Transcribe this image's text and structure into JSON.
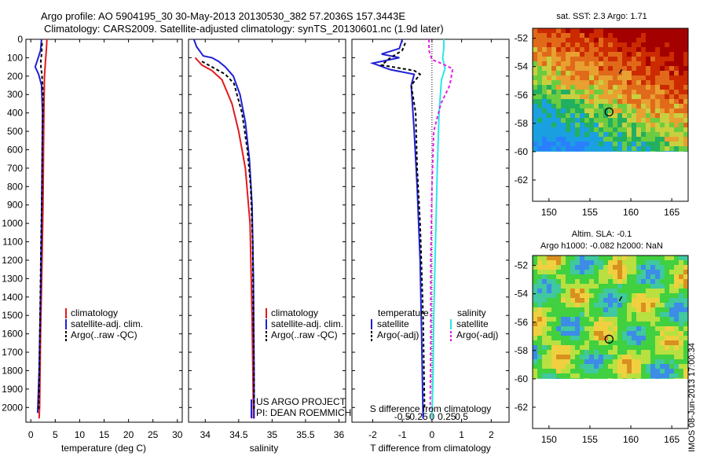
{
  "titles": {
    "line1": "Argo profile: AO 5904195_30 30-May-2013 20130530_382 57.2036S 157.3443E",
    "line2": "Climatology: CARS2009. Satellite-adjusted climatology: synTS_20130601.nc (1.9d later)"
  },
  "stamp": "IMOS 08-Jun-2013 17:00:34",
  "colors": {
    "climatology": "#e31a1c",
    "satellite": "#1f1fd6",
    "argo": "#000000",
    "salinity_sat": "#2ee6e6",
    "argo_adj_s": "#e61ee6"
  },
  "chart_data": [
    {
      "type": "line",
      "panel": "temperature",
      "xlabel": "temperature (deg C)",
      "ylabel": "",
      "xlim": [
        -1,
        31
      ],
      "ylim": [
        2080,
        0
      ],
      "xticks": [
        "0",
        "5",
        "10",
        "15",
        "20",
        "25",
        "30"
      ],
      "yticks": [
        "0",
        "100",
        "200",
        "300",
        "400",
        "500",
        "600",
        "700",
        "800",
        "900",
        "1000",
        "1100",
        "1200",
        "1300",
        "1400",
        "1500",
        "1600",
        "1700",
        "1800",
        "1900",
        "2000"
      ],
      "legend": [
        "climatology",
        "satellite-adj. clim.",
        "Argo(..raw -QC)"
      ],
      "series": [
        {
          "name": "climatology",
          "color": "#e31a1c",
          "points": [
            [
              3.3,
              0
            ],
            [
              3.2,
              50
            ],
            [
              3.0,
              120
            ],
            [
              2.8,
              200
            ],
            [
              2.7,
              350
            ],
            [
              2.6,
              600
            ],
            [
              2.5,
              900
            ],
            [
              2.3,
              1200
            ],
            [
              2.0,
              1600
            ],
            [
              1.8,
              2000
            ],
            [
              1.7,
              2060
            ]
          ]
        },
        {
          "name": "satellite-adj. clim.",
          "color": "#1f1fd6",
          "points": [
            [
              2.2,
              0
            ],
            [
              2.0,
              60
            ],
            [
              1.4,
              110
            ],
            [
              0.9,
              150
            ],
            [
              1.6,
              190
            ],
            [
              2.2,
              250
            ],
            [
              2.4,
              400
            ],
            [
              2.3,
              700
            ],
            [
              2.2,
              1000
            ],
            [
              2.0,
              1400
            ],
            [
              1.7,
              1800
            ],
            [
              1.4,
              2030
            ]
          ]
        },
        {
          "name": "Argo(..raw -QC)",
          "color": "#000000",
          "dashed": true,
          "points": [
            [
              2.3,
              20
            ],
            [
              2.2,
              80
            ],
            [
              2.0,
              130
            ],
            [
              2.3,
              200
            ],
            [
              2.5,
              300
            ],
            [
              2.4,
              500
            ],
            [
              2.3,
              800
            ],
            [
              2.1,
              1100
            ],
            [
              1.9,
              1500
            ],
            [
              1.7,
              1900
            ],
            [
              1.6,
              2010
            ]
          ]
        }
      ]
    },
    {
      "type": "line",
      "panel": "salinity",
      "xlabel": "salinity",
      "ylabel": "",
      "xlim": [
        33.75,
        36.1
      ],
      "ylim": [
        2080,
        0
      ],
      "xticks": [
        "34",
        "34.5",
        "35",
        "35.5",
        "36"
      ],
      "legend": [
        "climatology",
        "satellite-adj. clim.",
        "Argo(..raw -QC)"
      ],
      "annotation": [
        "US ARGO PROJECT",
        "PI: DEAN ROEMMICH"
      ],
      "series": [
        {
          "name": "climatology",
          "color": "#e31a1c",
          "points": [
            [
              33.85,
              100
            ],
            [
              33.95,
              140
            ],
            [
              34.1,
              170
            ],
            [
              34.25,
              220
            ],
            [
              34.4,
              350
            ],
            [
              34.5,
              500
            ],
            [
              34.6,
              700
            ],
            [
              34.67,
              1000
            ],
            [
              34.7,
              1500
            ],
            [
              34.72,
              2000
            ],
            [
              34.72,
              2060
            ]
          ]
        },
        {
          "name": "satellite-adj. clim.",
          "color": "#1f1fd6",
          "points": [
            [
              33.83,
              0
            ],
            [
              33.87,
              40
            ],
            [
              33.97,
              90
            ],
            [
              34.1,
              100
            ],
            [
              34.2,
              120
            ],
            [
              34.3,
              150
            ],
            [
              34.42,
              200
            ],
            [
              34.52,
              300
            ],
            [
              34.6,
              450
            ],
            [
              34.66,
              650
            ],
            [
              34.7,
              900
            ],
            [
              34.72,
              1300
            ],
            [
              34.73,
              1800
            ],
            [
              34.73,
              2060
            ]
          ]
        },
        {
          "name": "Argo(..raw -QC)",
          "color": "#000000",
          "dashed": true,
          "points": [
            [
              33.95,
              120
            ],
            [
              34.1,
              150
            ],
            [
              34.3,
              190
            ],
            [
              34.43,
              240
            ],
            [
              34.55,
              400
            ],
            [
              34.63,
              600
            ],
            [
              34.68,
              800
            ],
            [
              34.71,
              1100
            ],
            [
              34.72,
              1500
            ],
            [
              34.73,
              1900
            ],
            [
              34.73,
              2010
            ]
          ]
        }
      ]
    },
    {
      "type": "line",
      "panel": "difference",
      "xlabel": "T difference from climatology",
      "xlabel_top": "S difference from climatology",
      "xlim": [
        -2.7,
        2.6
      ],
      "xticks": [
        "-2",
        "-1",
        "0",
        "1",
        "2"
      ],
      "xticks_top": [
        "-0.5",
        "-0.25",
        "0",
        "0.25",
        "0.5"
      ],
      "ylim": [
        2080,
        0
      ],
      "legend_temperature": {
        "title": "temperature",
        "items": [
          "satellite",
          "Argo(-adj)"
        ]
      },
      "legend_salinity": {
        "title": "salinity",
        "items": [
          "satellite",
          "Argo(-adj)"
        ]
      },
      "series": [
        {
          "name": "T satellite",
          "color": "#1f1fd6",
          "points": [
            [
              -1.0,
              0
            ],
            [
              -1.1,
              50
            ],
            [
              -1.7,
              80
            ],
            [
              -1.1,
              100
            ],
            [
              -2.0,
              130
            ],
            [
              -1.4,
              165
            ],
            [
              -0.6,
              190
            ],
            [
              -0.7,
              250
            ],
            [
              -0.6,
              500
            ],
            [
              -0.5,
              800
            ],
            [
              -0.4,
              1200
            ],
            [
              -0.35,
              1600
            ],
            [
              -0.3,
              2060
            ]
          ]
        },
        {
          "name": "T Argo(-adj)",
          "color": "#000000",
          "dashed": true,
          "points": [
            [
              -0.9,
              20
            ],
            [
              -1.0,
              60
            ],
            [
              -1.4,
              100
            ],
            [
              -1.7,
              140
            ],
            [
              -0.6,
              170
            ],
            [
              -0.4,
              190
            ],
            [
              -0.7,
              250
            ],
            [
              -0.55,
              400
            ],
            [
              -0.5,
              700
            ],
            [
              -0.4,
              1000
            ],
            [
              -0.3,
              1500
            ],
            [
              -0.25,
              2010
            ]
          ]
        },
        {
          "name": "S satellite",
          "color": "#2ee6e6",
          "points": [
            [
              0.2,
              0
            ],
            [
              0.2,
              50
            ],
            [
              0.18,
              100
            ],
            [
              0.22,
              160
            ],
            [
              0.16,
              220
            ],
            [
              0.12,
              400
            ],
            [
              0.09,
              700
            ],
            [
              0.06,
              1100
            ],
            [
              0.03,
              1500
            ],
            [
              0.02,
              1800
            ],
            [
              0.0,
              2060
            ]
          ]
        },
        {
          "name": "S Argo(-adj)",
          "color": "#e61ee6",
          "dashed": true,
          "points": [
            [
              -0.05,
              0
            ],
            [
              -0.05,
              60
            ],
            [
              0.0,
              110
            ],
            [
              0.15,
              130
            ],
            [
              0.35,
              160
            ],
            [
              0.3,
              250
            ],
            [
              0.15,
              350
            ],
            [
              0.03,
              500
            ],
            [
              0.0,
              800
            ],
            [
              -0.02,
              1200
            ],
            [
              -0.02,
              1600
            ],
            [
              -0.03,
              2010
            ]
          ]
        }
      ]
    },
    {
      "type": "heatmap",
      "panel": "SST map",
      "title": "sat. SST: 2.3 Argo: 1.71",
      "xticks": [
        "150",
        "155",
        "160",
        "165"
      ],
      "yticks": [
        "-52",
        "-54",
        "-56",
        "-58",
        "-60",
        "-62"
      ],
      "xlim": [
        148,
        167
      ],
      "ylim": [
        -63.5,
        -51.3
      ],
      "argo_position": [
        157.34,
        -57.2
      ]
    },
    {
      "type": "heatmap",
      "panel": "SLA map",
      "title": "Altim. SLA: -0.1",
      "subtitle": "Argo h1000: -0.082 h2000: NaN",
      "xticks": [
        "150",
        "155",
        "160",
        "165"
      ],
      "yticks": [
        "-52",
        "-54",
        "-56",
        "-58",
        "-60",
        "-62"
      ],
      "xlim": [
        148,
        167
      ],
      "ylim": [
        -63.5,
        -51.3
      ],
      "argo_position": [
        157.34,
        -57.2
      ]
    }
  ]
}
